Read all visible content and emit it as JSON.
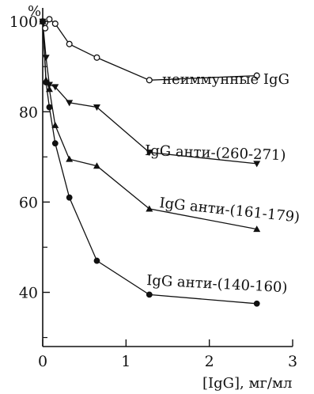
{
  "chart_data": {
    "type": "line",
    "ylabel": "%",
    "xlabel": "[IgG], мг/мл",
    "xlim": [
      0,
      3
    ],
    "ylim": [
      28,
      103
    ],
    "x_ticks": [
      0,
      1,
      2,
      3
    ],
    "y_ticks": [
      40,
      60,
      80,
      100
    ],
    "legend": "labels next to series",
    "series": [
      {
        "name": "неиммунные IgG",
        "marker": "open-circle",
        "points": [
          [
            0.0,
            100
          ],
          [
            0.03,
            98.5
          ],
          [
            0.08,
            100.5
          ],
          [
            0.15,
            99.5
          ],
          [
            0.32,
            95
          ],
          [
            0.65,
            92
          ],
          [
            1.28,
            87
          ],
          [
            2.57,
            88
          ]
        ]
      },
      {
        "name": "IgG анти-(260-271)",
        "marker": "filled-triangle-down",
        "points": [
          [
            0.0,
            100
          ],
          [
            0.04,
            92
          ],
          [
            0.08,
            86
          ],
          [
            0.15,
            85.5
          ],
          [
            0.32,
            82
          ],
          [
            0.65,
            81
          ],
          [
            1.28,
            71
          ],
          [
            2.57,
            68.5
          ]
        ]
      },
      {
        "name": "IgG анти-(161-179)",
        "marker": "filled-triangle-up",
        "points": [
          [
            0.0,
            100
          ],
          [
            0.04,
            87
          ],
          [
            0.08,
            85
          ],
          [
            0.15,
            77
          ],
          [
            0.32,
            69.5
          ],
          [
            0.65,
            68
          ],
          [
            1.28,
            58.5
          ],
          [
            2.57,
            54
          ]
        ]
      },
      {
        "name": "IgG анти-(140-160)",
        "marker": "filled-circle",
        "points": [
          [
            0.0,
            100
          ],
          [
            0.04,
            86.5
          ],
          [
            0.08,
            81
          ],
          [
            0.15,
            73
          ],
          [
            0.32,
            61
          ],
          [
            0.65,
            47
          ],
          [
            1.28,
            39.5
          ],
          [
            2.57,
            37.5
          ]
        ]
      }
    ]
  }
}
